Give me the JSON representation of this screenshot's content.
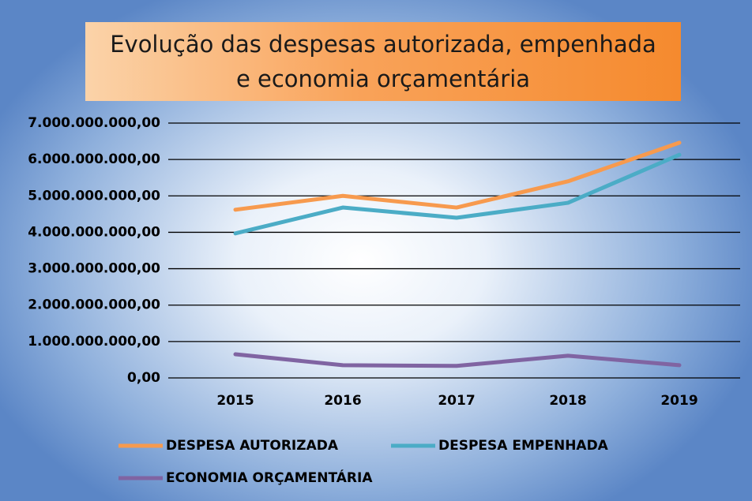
{
  "chart_data": {
    "type": "line",
    "title": "Evolução das despesas autorizada, empenhada e economia orçamentária",
    "categories": [
      "2015",
      "2016",
      "2017",
      "2018",
      "2019"
    ],
    "series": [
      {
        "name": "DESPESA AUTORIZADA",
        "color": "#f79a4e",
        "values": [
          4620000000,
          5000000000,
          4680000000,
          5400000000,
          6460000000
        ]
      },
      {
        "name": "DESPESA EMPENHADA",
        "color": "#4bacc6",
        "values": [
          3970000000,
          4680000000,
          4400000000,
          4810000000,
          6130000000
        ]
      },
      {
        "name": "ECONOMIA ORÇAMENTÁRIA",
        "color": "#8064a2",
        "values": [
          650000000,
          350000000,
          330000000,
          610000000,
          350000000
        ]
      }
    ],
    "ylim": [
      0,
      7000000000
    ],
    "yticks": [
      {
        "value": 0,
        "label": "0,00"
      },
      {
        "value": 1000000000,
        "label": "1.000.000.000,00"
      },
      {
        "value": 2000000000,
        "label": "2.000.000.000,00"
      },
      {
        "value": 3000000000,
        "label": "3.000.000.000,00"
      },
      {
        "value": 4000000000,
        "label": "4.000.000.000,00"
      },
      {
        "value": 5000000000,
        "label": "5.000.000.000,00"
      },
      {
        "value": 6000000000,
        "label": "6.000.000.000,00"
      },
      {
        "value": 7000000000,
        "label": "7.000.000.000,00"
      }
    ],
    "grid": true
  }
}
